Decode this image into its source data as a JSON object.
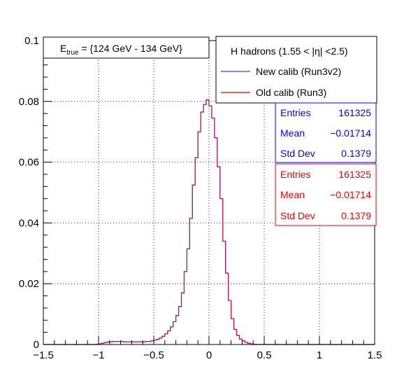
{
  "chart_data": {
    "type": "histogram",
    "title": "",
    "xlabel": "",
    "ylabel": "",
    "xlim": [
      -1.5,
      1.5
    ],
    "ylim": [
      0,
      0.1
    ],
    "grid": true,
    "x_ticks": [
      "−1.5",
      "−1",
      "−0.5",
      "0",
      "0.5",
      "1",
      "1.5"
    ],
    "y_ticks": [
      "0",
      "0.02",
      "0.04",
      "0.06",
      "0.08",
      "0.1"
    ],
    "annotation": {
      "prefix": "E",
      "subscript": "true",
      "text": " = {124 GeV - 134 GeV}"
    },
    "legend": {
      "title": "H hadrons (1.55 < |η| <2.5)",
      "placement": "top-right"
    },
    "bin_width": 0.025,
    "bin_centers": [
      -1.0125,
      -0.9875,
      -0.9625,
      -0.9375,
      -0.9125,
      -0.8875,
      -0.8625,
      -0.8375,
      -0.8125,
      -0.7875,
      -0.7625,
      -0.7375,
      -0.7125,
      -0.6875,
      -0.6625,
      -0.6375,
      -0.6125,
      -0.5875,
      -0.5625,
      -0.5375,
      -0.5125,
      -0.4875,
      -0.4625,
      -0.4375,
      -0.4125,
      -0.3875,
      -0.3625,
      -0.3375,
      -0.3125,
      -0.2875,
      -0.2625,
      -0.2375,
      -0.2125,
      -0.1875,
      -0.1625,
      -0.1375,
      -0.1125,
      -0.0875,
      -0.0625,
      -0.0375,
      -0.0125,
      0.0125,
      0.0375,
      0.0625,
      0.0875,
      0.1125,
      0.1375,
      0.1625,
      0.1875,
      0.2125,
      0.2375,
      0.2625,
      0.2875,
      0.3125,
      0.3375,
      0.3625,
      0.3875,
      0.4125
    ],
    "series": [
      {
        "name": "New calib (Run3v2)",
        "color": "#3a3aff",
        "values": [
          0.0001,
          0.0002,
          0.0004,
          0.0006,
          0.0008,
          0.0009,
          0.001,
          0.001,
          0.001,
          0.001,
          0.0009,
          0.0009,
          0.0009,
          0.0009,
          0.0009,
          0.0009,
          0.0009,
          0.0009,
          0.001,
          0.001,
          0.0012,
          0.0014,
          0.0017,
          0.0021,
          0.0027,
          0.0035,
          0.0045,
          0.0058,
          0.0075,
          0.0095,
          0.0125,
          0.017,
          0.024,
          0.0315,
          0.0415,
          0.0525,
          0.0615,
          0.07,
          0.0765,
          0.079,
          0.0805,
          0.0785,
          0.0745,
          0.068,
          0.0585,
          0.048,
          0.034,
          0.0235,
          0.0145,
          0.0085,
          0.005,
          0.003,
          0.0018,
          0.0012,
          0.0007,
          0.0004,
          0.0002,
          0.0001
        ],
        "stats": {
          "entries_label": "Entries",
          "entries": "161325",
          "mean_label": "Mean",
          "mean": "−0.01714",
          "std_label": "Std Dev",
          "std": "0.1379"
        }
      },
      {
        "name": "Old calib (Run3)",
        "color": "#ee0000",
        "values": [
          0.0001,
          0.0002,
          0.0004,
          0.0006,
          0.0008,
          0.0009,
          0.001,
          0.001,
          0.001,
          0.001,
          0.0009,
          0.0009,
          0.0009,
          0.0009,
          0.0009,
          0.0009,
          0.0009,
          0.0009,
          0.001,
          0.001,
          0.0012,
          0.0014,
          0.0017,
          0.0021,
          0.0027,
          0.0035,
          0.0045,
          0.0058,
          0.0075,
          0.0095,
          0.0125,
          0.017,
          0.024,
          0.0315,
          0.0415,
          0.0525,
          0.0615,
          0.07,
          0.0765,
          0.079,
          0.0805,
          0.0785,
          0.0745,
          0.068,
          0.0585,
          0.048,
          0.034,
          0.0235,
          0.0145,
          0.0085,
          0.005,
          0.003,
          0.0018,
          0.0012,
          0.0007,
          0.0004,
          0.0002,
          0.0001
        ],
        "stats": {
          "entries_label": "Entries",
          "entries": "161325",
          "mean_label": "Mean",
          "mean": "−0.01714",
          "std_label": "Std Dev",
          "std": "0.1379"
        }
      }
    ]
  }
}
